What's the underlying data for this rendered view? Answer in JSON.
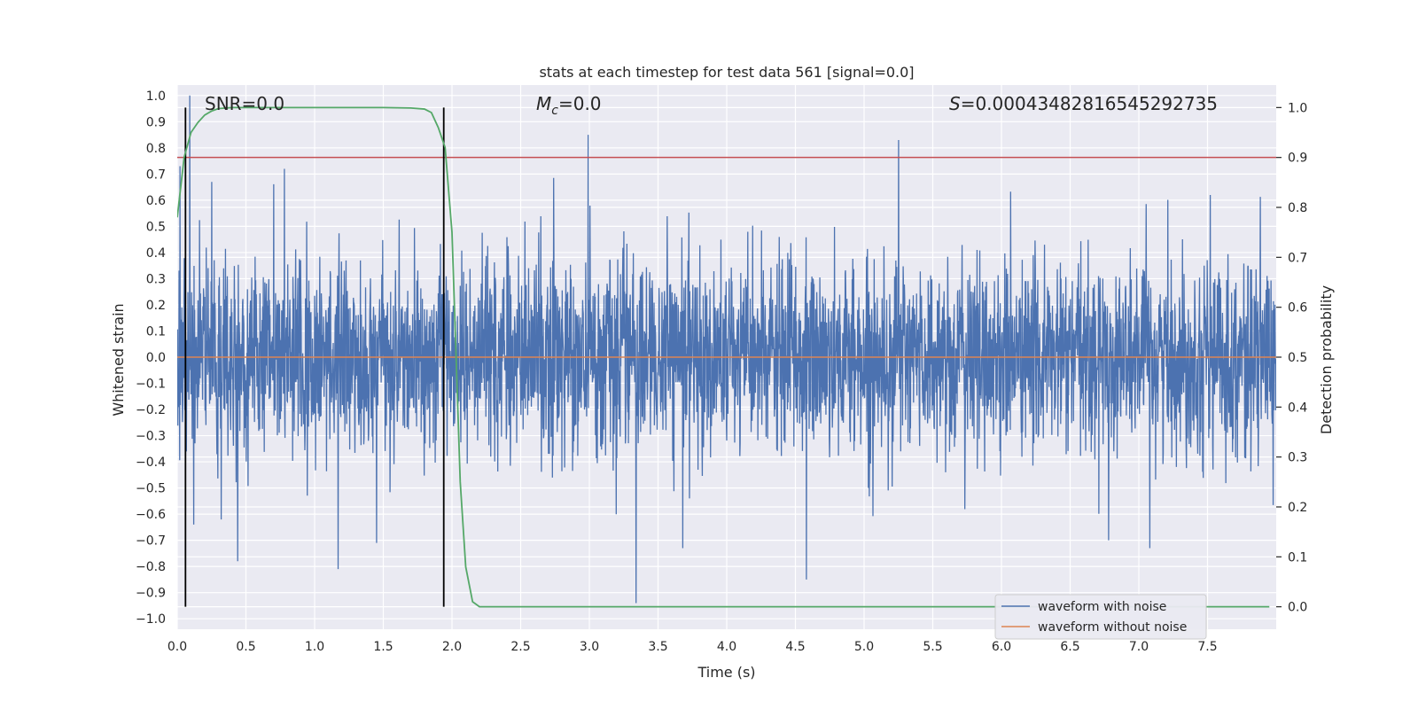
{
  "chart_data": {
    "type": "line",
    "title": "stats at each timestep for test data 561 [signal=0.0]",
    "xlabel": "Time (s)",
    "ylabel": "Whitened strain",
    "y2label": "Detection probability",
    "xlim": [
      0.0,
      8.0
    ],
    "ylim": [
      -1.04,
      1.04
    ],
    "y2lim": [
      -0.045,
      1.045
    ],
    "x_ticks": [
      "0.0",
      "0.5",
      "1.0",
      "1.5",
      "2.0",
      "2.5",
      "3.0",
      "3.5",
      "4.0",
      "4.5",
      "5.0",
      "5.5",
      "6.0",
      "6.5",
      "7.0",
      "7.5"
    ],
    "y_ticks": [
      "1.0",
      "0.9",
      "0.8",
      "0.7",
      "0.6",
      "0.5",
      "0.4",
      "0.3",
      "0.2",
      "0.1",
      "0.0",
      "-0.1",
      "-0.2",
      "-0.3",
      "-0.4",
      "-0.5",
      "-0.6",
      "-0.7",
      "-0.8",
      "-0.9",
      "-1.0"
    ],
    "y2_ticks": [
      "1.0",
      "0.9",
      "0.8",
      "0.7",
      "0.6",
      "0.5",
      "0.4",
      "0.3",
      "0.2",
      "0.1",
      "0.0"
    ],
    "annotations": {
      "snr_label": "SNR=0.0",
      "mc_symbol": "M",
      "mc_sub": "c",
      "mc_value": "=0.0",
      "s_symbol": "S",
      "s_value": "=0.00043482816545292735"
    },
    "legend": {
      "position": "lower right",
      "entries": [
        "waveform with noise",
        "waveform without noise"
      ]
    },
    "colors": {
      "noise": "#4c72b0",
      "clean": "#dd8452",
      "probability": "#55a868",
      "threshold": "#c44e52",
      "bounds": "#000000",
      "plot_bg": "#eaeaf2",
      "grid": "#ffffff"
    },
    "threshold_probability": 0.9,
    "window_bounds_s": [
      0.06,
      1.94
    ],
    "series": [
      {
        "name": "waveform with noise",
        "kind": "noise",
        "envelope_std": 0.18,
        "spikes": [
          {
            "x": 0.02,
            "y": 0.73
          },
          {
            "x": 0.09,
            "y": 1.0
          },
          {
            "x": 0.12,
            "y": -0.64
          },
          {
            "x": 0.25,
            "y": 0.67
          },
          {
            "x": 0.44,
            "y": -0.78
          },
          {
            "x": 0.78,
            "y": 0.72
          },
          {
            "x": 1.17,
            "y": -0.81
          },
          {
            "x": 1.45,
            "y": -0.71
          },
          {
            "x": 2.99,
            "y": 0.85
          },
          {
            "x": 3.34,
            "y": -0.94
          },
          {
            "x": 3.68,
            "y": -0.73
          },
          {
            "x": 4.58,
            "y": -0.85
          },
          {
            "x": 5.25,
            "y": 0.83
          },
          {
            "x": 6.78,
            "y": -0.7
          },
          {
            "x": 7.08,
            "y": -0.73
          },
          {
            "x": 7.52,
            "y": 0.62
          }
        ]
      },
      {
        "name": "waveform without noise",
        "kind": "flat",
        "value": 0.0
      },
      {
        "name": "detection probability",
        "kind": "probability",
        "x": [
          0.0,
          0.05,
          0.1,
          0.15,
          0.2,
          0.25,
          0.3,
          0.4,
          0.5,
          1.0,
          1.5,
          1.7,
          1.8,
          1.85,
          1.9,
          1.95,
          2.0,
          2.03,
          2.06,
          2.1,
          2.15,
          2.2,
          7.95
        ],
        "y": [
          0.78,
          0.9,
          0.95,
          0.97,
          0.985,
          0.993,
          0.998,
          1.0,
          1.0,
          1.0,
          1.0,
          0.999,
          0.997,
          0.99,
          0.96,
          0.92,
          0.75,
          0.5,
          0.25,
          0.08,
          0.01,
          0.0,
          0.0
        ]
      }
    ]
  }
}
